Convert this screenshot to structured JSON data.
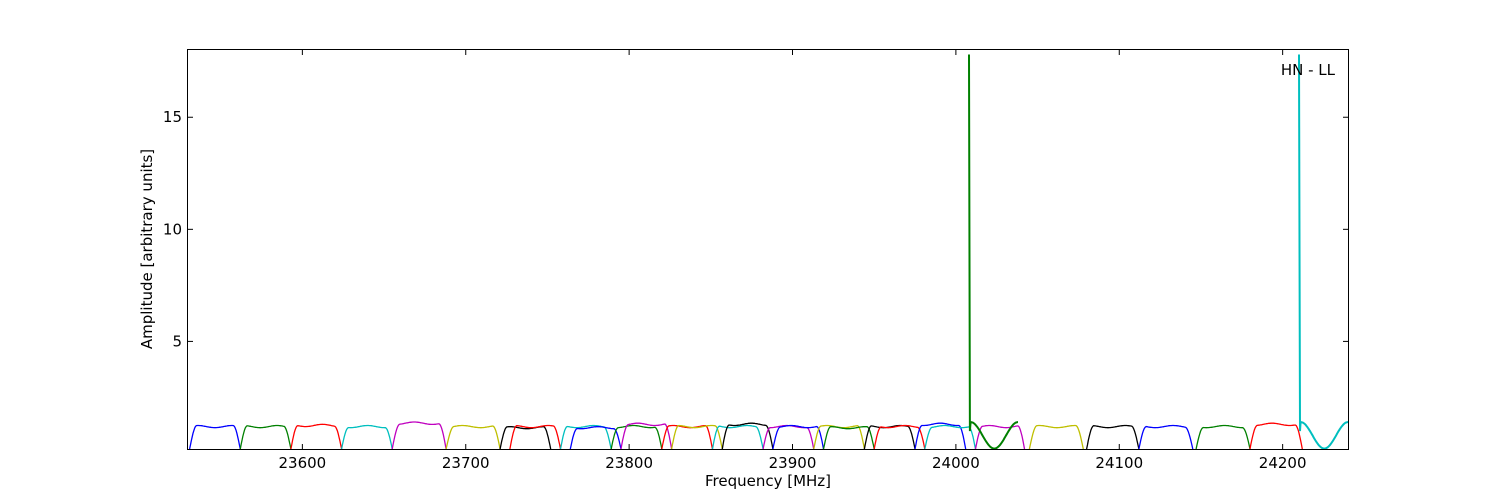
{
  "chart_data": {
    "type": "line",
    "title": "",
    "xlabel": "Frequency [MHz]",
    "ylabel": "Amplitude [arbitrary units]",
    "xlim": [
      23530,
      24240
    ],
    "ylim": [
      0.2,
      18
    ],
    "xticks": [
      23600,
      23700,
      23800,
      23900,
      24000,
      24100,
      24200
    ],
    "yticks": [
      5,
      10,
      15
    ],
    "grid": false,
    "legend": "none",
    "annotation": "HN - LL",
    "palette": [
      "#0000ff",
      "#008000",
      "#ff0000",
      "#00bfbf",
      "#bf00bf",
      "#bfbf00",
      "#000000"
    ],
    "band_shape": {
      "comment_free": true
    },
    "bands": [
      {
        "start": 23531,
        "end": 23562,
        "peak": 1.2,
        "color": "#0000ff"
      },
      {
        "start": 23562,
        "end": 23593,
        "peak": 1.2,
        "color": "#008000"
      },
      {
        "start": 23593,
        "end": 23624,
        "peak": 1.25,
        "color": "#ff0000"
      },
      {
        "start": 23624,
        "end": 23655,
        "peak": 1.2,
        "color": "#00bfbf"
      },
      {
        "start": 23655,
        "end": 23688,
        "peak": 1.35,
        "color": "#bf00bf"
      },
      {
        "start": 23688,
        "end": 23721,
        "peak": 1.2,
        "color": "#bfbf00"
      },
      {
        "start": 23721,
        "end": 23752,
        "peak": 1.15,
        "color": "#000000"
      },
      {
        "start": 23727,
        "end": 23758,
        "peak": 1.2,
        "color": "#ff0000"
      },
      {
        "start": 23758,
        "end": 23789,
        "peak": 1.2,
        "color": "#00bfbf"
      },
      {
        "start": 23764,
        "end": 23795,
        "peak": 1.15,
        "color": "#0000ff"
      },
      {
        "start": 23789,
        "end": 23820,
        "peak": 1.2,
        "color": "#008000"
      },
      {
        "start": 23795,
        "end": 23826,
        "peak": 1.3,
        "color": "#bf00bf"
      },
      {
        "start": 23820,
        "end": 23851,
        "peak": 1.2,
        "color": "#ff0000"
      },
      {
        "start": 23826,
        "end": 23857,
        "peak": 1.2,
        "color": "#bfbf00"
      },
      {
        "start": 23851,
        "end": 23882,
        "peak": 1.2,
        "color": "#00bfbf"
      },
      {
        "start": 23857,
        "end": 23888,
        "peak": 1.3,
        "color": "#000000"
      },
      {
        "start": 23882,
        "end": 23913,
        "peak": 1.2,
        "color": "#bf00bf"
      },
      {
        "start": 23888,
        "end": 23919,
        "peak": 1.2,
        "color": "#0000ff"
      },
      {
        "start": 23913,
        "end": 23944,
        "peak": 1.2,
        "color": "#bfbf00"
      },
      {
        "start": 23919,
        "end": 23950,
        "peak": 1.15,
        "color": "#008000"
      },
      {
        "start": 23944,
        "end": 23975,
        "peak": 1.2,
        "color": "#000000"
      },
      {
        "start": 23950,
        "end": 23981,
        "peak": 1.2,
        "color": "#ff0000"
      },
      {
        "start": 23975,
        "end": 24006,
        "peak": 1.3,
        "color": "#0000ff"
      },
      {
        "start": 23981,
        "end": 24012,
        "peak": 1.2,
        "color": "#00bfbf"
      },
      {
        "start": 24012,
        "end": 24042,
        "peak": 1.2,
        "color": "#bf00bf"
      },
      {
        "start": 24045,
        "end": 24078,
        "peak": 1.2,
        "color": "#bfbf00"
      },
      {
        "start": 24080,
        "end": 24112,
        "peak": 1.2,
        "color": "#000000"
      },
      {
        "start": 24112,
        "end": 24145,
        "peak": 1.2,
        "color": "#0000ff"
      },
      {
        "start": 24147,
        "end": 24180,
        "peak": 1.2,
        "color": "#008000"
      },
      {
        "start": 24180,
        "end": 24212,
        "peak": 1.3,
        "color": "#ff0000"
      }
    ],
    "spikes": [
      {
        "x": 24008,
        "peak": 17.8,
        "color": "#008000",
        "ripple_start": 24008,
        "ripple_end": 24038,
        "ripple_min": 0.22,
        "ripple_max": 1.4
      },
      {
        "x": 24210,
        "peak": 17.8,
        "color": "#00bfbf",
        "ripple_start": 24210,
        "ripple_end": 24240,
        "ripple_min": 0.22,
        "ripple_max": 1.4
      }
    ]
  }
}
